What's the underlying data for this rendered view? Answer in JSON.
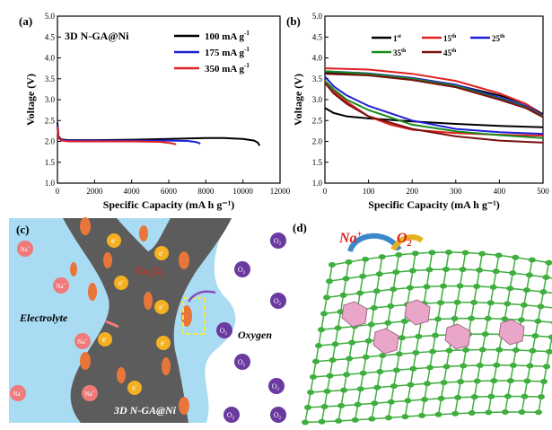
{
  "chart_data": [
    {
      "panel": "(a)",
      "type": "line",
      "title": "3D N-GA@Ni",
      "xlabel": "Specific Capacity (mA h g⁻¹)",
      "ylabel": "Voltage (V)",
      "xlim": [
        0,
        12000
      ],
      "ylim": [
        1.0,
        5.0
      ],
      "xticks": [
        "0",
        "2000",
        "4000",
        "6000",
        "8000",
        "10000",
        "12000"
      ],
      "yticks": [
        "1.0",
        "1.5",
        "2.0",
        "2.5",
        "3.0",
        "3.5",
        "4.0",
        "4.5",
        "5.0"
      ],
      "legend_position": "top-right",
      "series": [
        {
          "name": "100 mA g",
          "sup": "-1",
          "color": "#000000",
          "x": [
            0,
            60,
            200,
            600,
            2000,
            4000,
            6000,
            8000,
            9000,
            10000,
            10600,
            10800,
            10900
          ],
          "y": [
            2.45,
            2.12,
            2.05,
            2.03,
            2.03,
            2.04,
            2.06,
            2.08,
            2.08,
            2.06,
            2.02,
            1.97,
            1.9
          ]
        },
        {
          "name": "175 mA g",
          "sup": "-1",
          "color": "#1f1fd6",
          "x": [
            0,
            60,
            200,
            600,
            2000,
            4000,
            6000,
            7000,
            7400,
            7600,
            7700
          ],
          "y": [
            2.4,
            2.1,
            2.04,
            2.02,
            2.02,
            2.02,
            2.02,
            2.01,
            1.99,
            1.97,
            1.94
          ]
        },
        {
          "name": "350 mA g",
          "sup": "-1",
          "color": "#e02020",
          "x": [
            0,
            60,
            200,
            600,
            2000,
            4000,
            5500,
            6100,
            6400
          ],
          "y": [
            2.35,
            2.08,
            2.02,
            2.0,
            2.0,
            2.0,
            1.99,
            1.96,
            1.93
          ]
        }
      ]
    },
    {
      "panel": "(b)",
      "type": "line",
      "xlabel": "Specific Capacity (mA h g⁻¹)",
      "ylabel": "Voltage (V)",
      "xlim": [
        0,
        500
      ],
      "ylim": [
        1.0,
        5.0
      ],
      "xticks": [
        "0",
        "100",
        "200",
        "300",
        "400",
        "500"
      ],
      "yticks": [
        "1.0",
        "1.5",
        "2.0",
        "2.5",
        "3.0",
        "3.5",
        "4.0",
        "4.5",
        "5.0"
      ],
      "legend_position": "top-right",
      "series": [
        {
          "name": "1",
          "sup": "st",
          "color": "#000000",
          "discharge_x": [
            0,
            20,
            50,
            100,
            200,
            300,
            400,
            500
          ],
          "discharge_y": [
            2.8,
            2.68,
            2.6,
            2.55,
            2.48,
            2.42,
            2.37,
            2.34
          ],
          "charge_x": [
            0,
            100,
            200,
            300,
            400,
            460,
            500
          ],
          "charge_y": [
            3.65,
            3.6,
            3.5,
            3.35,
            3.1,
            2.9,
            2.65
          ]
        },
        {
          "name": "15",
          "sup": "th",
          "color": "#e02020",
          "discharge_x": [
            0,
            20,
            50,
            100,
            150,
            200,
            300,
            400,
            500
          ],
          "discharge_y": [
            3.45,
            3.2,
            2.95,
            2.6,
            2.4,
            2.28,
            2.2,
            2.16,
            2.14
          ],
          "charge_x": [
            0,
            100,
            200,
            300,
            400,
            460,
            500
          ],
          "charge_y": [
            3.75,
            3.72,
            3.62,
            3.45,
            3.15,
            2.9,
            2.62
          ]
        },
        {
          "name": "25",
          "sup": "th",
          "color": "#1f1fd6",
          "discharge_x": [
            0,
            20,
            50,
            100,
            200,
            300,
            400,
            500
          ],
          "discharge_y": [
            3.55,
            3.32,
            3.1,
            2.85,
            2.5,
            2.3,
            2.22,
            2.18
          ],
          "charge_x": [
            0,
            100,
            200,
            300,
            400,
            460,
            500
          ],
          "charge_y": [
            3.68,
            3.63,
            3.52,
            3.36,
            3.05,
            2.85,
            2.62
          ]
        },
        {
          "name": "35",
          "sup": "th",
          "color": "#1a8a1a",
          "discharge_x": [
            0,
            20,
            50,
            100,
            200,
            300,
            400,
            500
          ],
          "discharge_y": [
            3.45,
            3.25,
            3.0,
            2.75,
            2.4,
            2.24,
            2.15,
            2.08
          ],
          "charge_x": [
            0,
            100,
            200,
            300,
            400,
            460,
            500
          ],
          "charge_y": [
            3.68,
            3.62,
            3.5,
            3.33,
            3.02,
            2.82,
            2.6
          ]
        },
        {
          "name": "45",
          "sup": "th",
          "color": "#7a1010",
          "discharge_x": [
            0,
            20,
            50,
            100,
            200,
            300,
            400,
            500
          ],
          "discharge_y": [
            3.4,
            3.15,
            2.9,
            2.6,
            2.3,
            2.12,
            2.02,
            1.97
          ],
          "charge_x": [
            0,
            100,
            200,
            300,
            400,
            460,
            500
          ],
          "charge_y": [
            3.62,
            3.58,
            3.47,
            3.3,
            3.0,
            2.8,
            2.58
          ]
        }
      ]
    }
  ],
  "schematic_c": {
    "panel": "(c)",
    "electrolyte_label": "Electrolyte",
    "oxygen_label": "Oxygen",
    "electrode_label": "3D N-GA@Ni",
    "product_label": "Na",
    "product_sub1": "2",
    "product_sub2": "2",
    "product_o": "O",
    "electron": "e",
    "electron_sup": "-",
    "na_ion": "Na",
    "na_sup": "+",
    "o2": "O",
    "o2_sub": "2",
    "colors": {
      "electrolyte": "#a9dcf3",
      "electrode": "#5c5c5c",
      "product": "#e8763a",
      "electron": "#f5b020",
      "na": "#f07a7a",
      "o2": "#6a3aa0"
    }
  },
  "schematic_d": {
    "panel": "(d)",
    "na_label": "Na",
    "na_sup": "+",
    "o_label": "O",
    "o_sub": "2",
    "colors": {
      "mesh": "#3fae3f",
      "cube": "#e9a6c8",
      "na_text": "#e02020",
      "o_text": "#e02020"
    }
  }
}
